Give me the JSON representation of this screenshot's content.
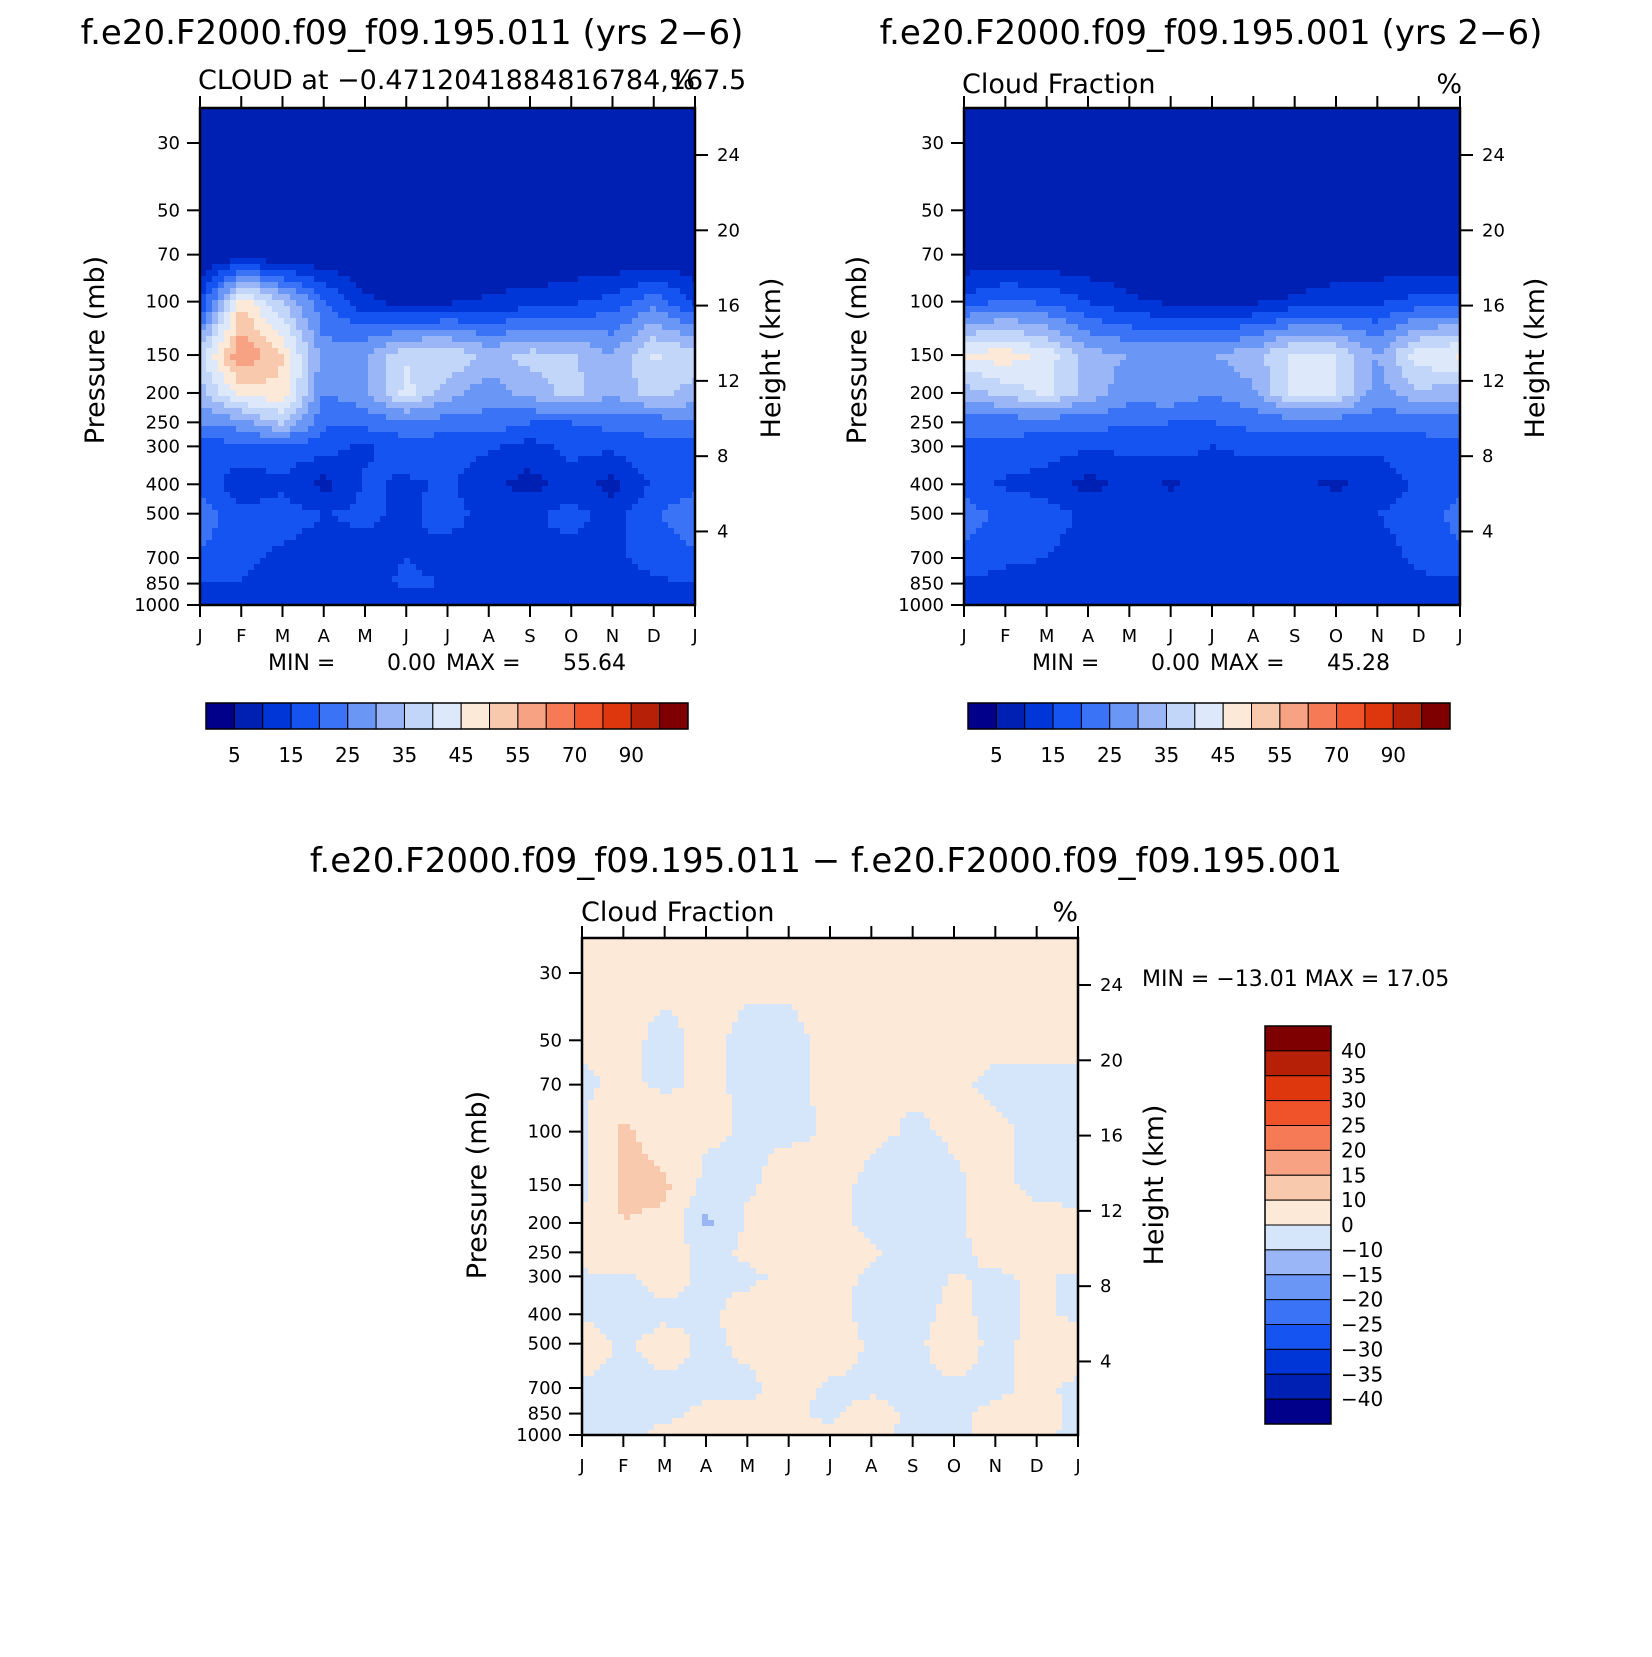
{
  "levels": {
    "abs": [
      0,
      5,
      10,
      15,
      20,
      25,
      30,
      35,
      40,
      45,
      50,
      55,
      60,
      70,
      80,
      90
    ],
    "diff": [
      -40,
      -35,
      -30,
      -25,
      -20,
      -15,
      -10,
      0,
      10,
      15,
      20,
      25,
      30,
      35,
      40
    ]
  },
  "colors": {
    "abs": [
      "#00008a",
      "#0020b4",
      "#0035d8",
      "#1654f2",
      "#3a73f5",
      "#6a96f5",
      "#9ab6f7",
      "#c2d6fa",
      "#dde9fb",
      "#fde9d7",
      "#f9c9ae",
      "#f7a383",
      "#f67a55",
      "#f05329",
      "#de360d",
      "#b52007",
      "#7e0000"
    ],
    "diff": [
      "#00008a",
      "#0020b4",
      "#0035d8",
      "#1654f2",
      "#3a73f5",
      "#6a96f5",
      "#9ab6f7",
      "#d5e6fb",
      "#fde9d7",
      "#f9c9ae",
      "#f7a383",
      "#f67a55",
      "#f05329",
      "#de360d",
      "#b52007",
      "#7e0000"
    ]
  },
  "axes": {
    "months": [
      "J",
      "F",
      "M",
      "A",
      "M",
      "J",
      "J",
      "A",
      "S",
      "O",
      "N",
      "D",
      "J"
    ],
    "pressure_ticks": [
      "30",
      "50",
      "70",
      "100",
      "150",
      "200",
      "250",
      "300",
      "400",
      "500",
      "700",
      "850",
      "1000"
    ],
    "height_ticks": [
      "24",
      "20",
      "16",
      "12",
      "8",
      "4"
    ],
    "ylabel_left": "Pressure (mb)",
    "ylabel_right": "Height (km)"
  },
  "panels": [
    {
      "title": "f.e20.F2000.f09_f09.195.011 (yrs 2−6)",
      "left_label": "CLOUD at −0.4712041884816784,167.5",
      "right_label": "%",
      "min_label": "MIN =",
      "min_value": "0.00",
      "max_label": "MAX =",
      "max_value": "55.64",
      "colorbar_labels": [
        "5",
        "15",
        "25",
        "35",
        "45",
        "55",
        "70",
        "90"
      ]
    },
    {
      "title": "f.e20.F2000.f09_f09.195.001 (yrs 2−6)",
      "left_label": "Cloud Fraction",
      "right_label": "%",
      "min_label": "MIN =",
      "min_value": "0.00",
      "max_label": "MAX =",
      "max_value": "45.28",
      "colorbar_labels": [
        "5",
        "15",
        "25",
        "35",
        "45",
        "55",
        "70",
        "90"
      ]
    },
    {
      "title": "f.e20.F2000.f09_f09.195.011 − f.e20.F2000.f09_f09.195.001",
      "left_label": "Cloud Fraction",
      "right_label": "%",
      "stats": "MIN = −13.01 MAX =   17.05",
      "colorbar_labels": [
        "40",
        "35",
        "30",
        "25",
        "20",
        "15",
        "10",
        "0",
        "−10",
        "−15",
        "−20",
        "−25",
        "−30",
        "−35",
        "−40"
      ]
    }
  ],
  "chart_data": [
    {
      "type": "heatmap",
      "title": "f.e20.F2000.f09_f09.195.011 (yrs 2−6)",
      "subtitle": "CLOUD at −0.4712041884816784,167.5",
      "units": "%",
      "xlabel": "",
      "ylabel": "Pressure (mb)",
      "y2label": "Height (km)",
      "x": [
        "J",
        "F",
        "M",
        "A",
        "M",
        "J",
        "J",
        "A",
        "S",
        "O",
        "N",
        "D",
        "J"
      ],
      "y": [
        30,
        50,
        70,
        100,
        150,
        200,
        250,
        300,
        400,
        500,
        700,
        850,
        1000
      ],
      "values": [
        [
          0,
          0,
          0,
          0,
          0,
          0,
          0,
          0,
          0,
          0,
          0,
          0,
          0
        ],
        [
          0,
          0,
          0,
          0,
          0,
          0,
          0,
          0,
          0,
          0,
          0,
          0,
          0
        ],
        [
          0,
          1,
          0,
          0,
          0,
          0,
          0,
          0,
          0,
          0,
          0,
          0,
          0
        ],
        [
          9,
          44,
          30,
          16,
          6,
          3,
          4,
          6,
          7,
          9,
          12,
          18,
          9
        ],
        [
          33,
          55,
          45,
          22,
          25,
          34,
          35,
          28,
          32,
          31,
          25,
          36,
          33
        ],
        [
          28,
          42,
          44,
          20,
          23,
          37,
          27,
          22,
          27,
          32,
          26,
          32,
          28
        ],
        [
          20,
          23,
          31,
          16,
          17,
          18,
          18,
          18,
          15,
          15,
          17,
          17,
          20
        ],
        [
          13,
          13,
          14,
          12,
          9,
          13,
          12,
          11,
          8,
          12,
          11,
          14,
          13
        ],
        [
          13,
          7,
          9,
          3,
          11,
          9,
          11,
          6,
          3,
          7,
          3,
          11,
          13
        ],
        [
          19,
          11,
          12,
          10,
          11,
          9,
          12,
          8,
          9,
          12,
          8,
          14,
          19
        ],
        [
          14,
          11,
          9,
          8,
          8,
          10,
          8,
          8,
          9,
          8,
          9,
          12,
          14
        ],
        [
          10,
          10,
          8,
          8,
          8,
          11,
          10,
          8,
          9,
          7,
          8,
          9,
          10
        ],
        [
          6,
          6,
          6,
          6,
          6,
          6,
          6,
          6,
          6,
          6,
          6,
          6,
          6
        ]
      ],
      "stats": {
        "min": 0.0,
        "max": 55.64
      },
      "levels": [
        0,
        5,
        10,
        15,
        20,
        25,
        30,
        35,
        40,
        45,
        50,
        55,
        60,
        70,
        80,
        90
      ]
    },
    {
      "type": "heatmap",
      "title": "f.e20.F2000.f09_f09.195.001 (yrs 2−6)",
      "subtitle": "Cloud Fraction",
      "units": "%",
      "xlabel": "",
      "ylabel": "Pressure (mb)",
      "y2label": "Height (km)",
      "x": [
        "J",
        "F",
        "M",
        "A",
        "M",
        "J",
        "J",
        "A",
        "S",
        "O",
        "N",
        "D",
        "J"
      ],
      "y": [
        30,
        50,
        70,
        100,
        150,
        200,
        250,
        300,
        400,
        500,
        700,
        850,
        1000
      ],
      "values": [
        [
          0,
          0,
          0,
          0,
          0,
          0,
          0,
          0,
          0,
          0,
          0,
          0,
          0
        ],
        [
          0,
          0,
          0,
          0,
          0,
          0,
          0,
          0,
          0,
          0,
          0,
          0,
          0
        ],
        [
          0,
          0,
          0,
          0,
          0,
          0,
          0,
          0,
          0,
          0,
          0,
          0,
          0
        ],
        [
          12,
          16,
          14,
          10,
          6,
          4,
          4,
          4,
          6,
          8,
          9,
          12,
          12
        ],
        [
          41,
          43,
          38,
          27,
          25,
          24,
          25,
          28,
          37,
          35,
          25,
          38,
          41
        ],
        [
          27,
          32,
          36,
          28,
          22,
          24,
          20,
          24,
          37,
          36,
          22,
          29,
          27
        ],
        [
          17,
          17,
          17,
          17,
          16,
          15,
          15,
          17,
          17,
          17,
          17,
          16,
          17
        ],
        [
          14,
          14,
          12,
          11,
          11,
          12,
          10,
          11,
          11,
          12,
          11,
          14,
          14
        ],
        [
          13,
          9,
          8,
          3,
          7,
          4,
          8,
          7,
          6,
          4,
          7,
          11,
          13
        ],
        [
          17,
          14,
          12,
          9,
          10,
          9,
          8,
          9,
          9,
          8,
          10,
          12,
          17
        ],
        [
          14,
          11,
          10,
          8,
          8,
          8,
          8,
          8,
          8,
          8,
          8,
          11,
          14
        ],
        [
          9,
          8,
          8,
          7,
          7,
          8,
          10,
          9,
          10,
          8,
          8,
          9,
          9
        ],
        [
          6,
          6,
          6,
          6,
          6,
          6,
          6,
          6,
          6,
          6,
          6,
          6,
          6
        ]
      ],
      "stats": {
        "min": 0.0,
        "max": 45.28
      },
      "levels": [
        0,
        5,
        10,
        15,
        20,
        25,
        30,
        35,
        40,
        45,
        50,
        55,
        60,
        70,
        80,
        90
      ]
    },
    {
      "type": "heatmap",
      "title": "f.e20.F2000.f09_f09.195.011 − f.e20.F2000.f09_f09.195.001",
      "subtitle": "Cloud Fraction",
      "units": "%",
      "xlabel": "",
      "ylabel": "Pressure (mb)",
      "y2label": "Height (km)",
      "x": [
        "J",
        "F",
        "M",
        "A",
        "M",
        "J",
        "J",
        "A",
        "S",
        "O",
        "N",
        "D",
        "J"
      ],
      "y": [
        30,
        50,
        70,
        100,
        150,
        200,
        250,
        300,
        400,
        500,
        700,
        850,
        1000
      ],
      "values": [
        [
          1,
          1,
          1,
          1,
          1,
          1,
          1,
          1,
          1,
          1,
          1,
          1,
          1
        ],
        [
          1,
          1,
          -1,
          1,
          -1,
          -1,
          1,
          1,
          1,
          1,
          1,
          1,
          1
        ],
        [
          -1,
          1,
          -1,
          1,
          -1,
          -1,
          1,
          1,
          1,
          1,
          -1,
          -1,
          -1
        ],
        [
          -2,
          12,
          5,
          2,
          -1,
          -2,
          1,
          2,
          -1,
          1,
          1,
          -1,
          -2
        ],
        [
          -3,
          12,
          12,
          -3,
          -2,
          5,
          3,
          -2,
          -7,
          -1,
          2,
          -2,
          -3
        ],
        [
          2,
          10,
          8,
          -12,
          2,
          8,
          3,
          -2,
          -10,
          -1,
          3,
          3,
          2
        ],
        [
          3,
          6,
          4,
          -2,
          1,
          3,
          3,
          1,
          -2,
          -2,
          2,
          6,
          3
        ],
        [
          -1,
          -1,
          2,
          -1,
          -1,
          1,
          2,
          -1,
          -3,
          0.5,
          -1,
          1,
          -1
        ],
        [
          -1,
          -2,
          -1,
          -1,
          2,
          3,
          2,
          -2,
          -3,
          2,
          -2,
          1,
          -1
        ],
        [
          3,
          -1,
          2,
          -1,
          1,
          2,
          4,
          -1,
          -2,
          4,
          -2,
          2,
          3
        ],
        [
          -1,
          -1,
          -1,
          -1,
          -1,
          2,
          -1,
          -1,
          -1,
          -1,
          -1,
          1,
          -1
        ],
        [
          -1,
          -1,
          -1,
          1,
          1,
          1,
          -1,
          2,
          -1,
          -1,
          1,
          2,
          -1
        ],
        [
          -1,
          -1,
          1,
          1,
          1,
          1,
          1,
          1,
          -1,
          -1,
          1,
          1,
          -1
        ]
      ],
      "stats": {
        "min": -13.01,
        "max": 17.05
      },
      "levels": [
        -40,
        -35,
        -30,
        -25,
        -20,
        -15,
        -10,
        0,
        10,
        15,
        20,
        25,
        30,
        35,
        40
      ]
    }
  ]
}
